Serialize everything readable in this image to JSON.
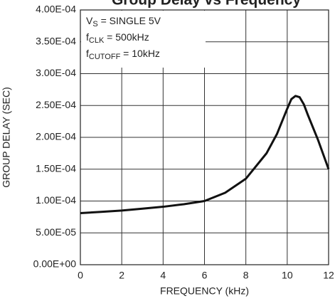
{
  "chart_data": {
    "type": "line",
    "title": "Group Delay vs Frequency",
    "x_label": "FREQUENCY (kHz)",
    "y_label": "GROUP DELAY (SEC)",
    "annotations": [
      {
        "main": "V",
        "sub": "S",
        "rest": " = SINGLE 5V"
      },
      {
        "main": "f",
        "sub": "CLK",
        "rest": " = 500kHz"
      },
      {
        "main": "f",
        "sub": "CUTOFF",
        "rest": " = 10kHz"
      }
    ],
    "series": [
      {
        "name": "Group delay",
        "color": "#111111",
        "x": [
          0,
          1,
          2,
          3,
          4,
          5,
          6,
          7,
          8,
          9,
          9.5,
          10,
          10.2,
          10.4,
          10.6,
          10.8,
          11,
          11.5,
          12
        ],
        "values": [
          8.1e-05,
          8.3e-05,
          8.5e-05,
          8.8e-05,
          9.1e-05,
          9.5e-05,
          0.0001,
          0.000113,
          0.000135,
          0.000175,
          0.000205,
          0.000245,
          0.00026,
          0.000265,
          0.000263,
          0.000252,
          0.000235,
          0.000195,
          0.00015
        ]
      }
    ],
    "xlim": [
      0,
      12
    ],
    "xticks": [
      0,
      2,
      4,
      6,
      8,
      10,
      12
    ],
    "ylim": [
      0,
      0.0004
    ],
    "yticks": [
      {
        "value": 0,
        "label": "0.00E+00"
      },
      {
        "value": 5e-05,
        "label": "5.00E-05"
      },
      {
        "value": 0.0001,
        "label": "1.00E-04"
      },
      {
        "value": 0.00015,
        "label": "1.50E-04"
      },
      {
        "value": 0.0002,
        "label": "2.00E-04"
      },
      {
        "value": 0.00025,
        "label": "2.50E-04"
      },
      {
        "value": 0.0003,
        "label": "3.00E-04"
      },
      {
        "value": 0.00035,
        "label": "3.50E-04"
      },
      {
        "value": 0.0004,
        "label": "4.00E-04"
      }
    ],
    "grid": true
  }
}
